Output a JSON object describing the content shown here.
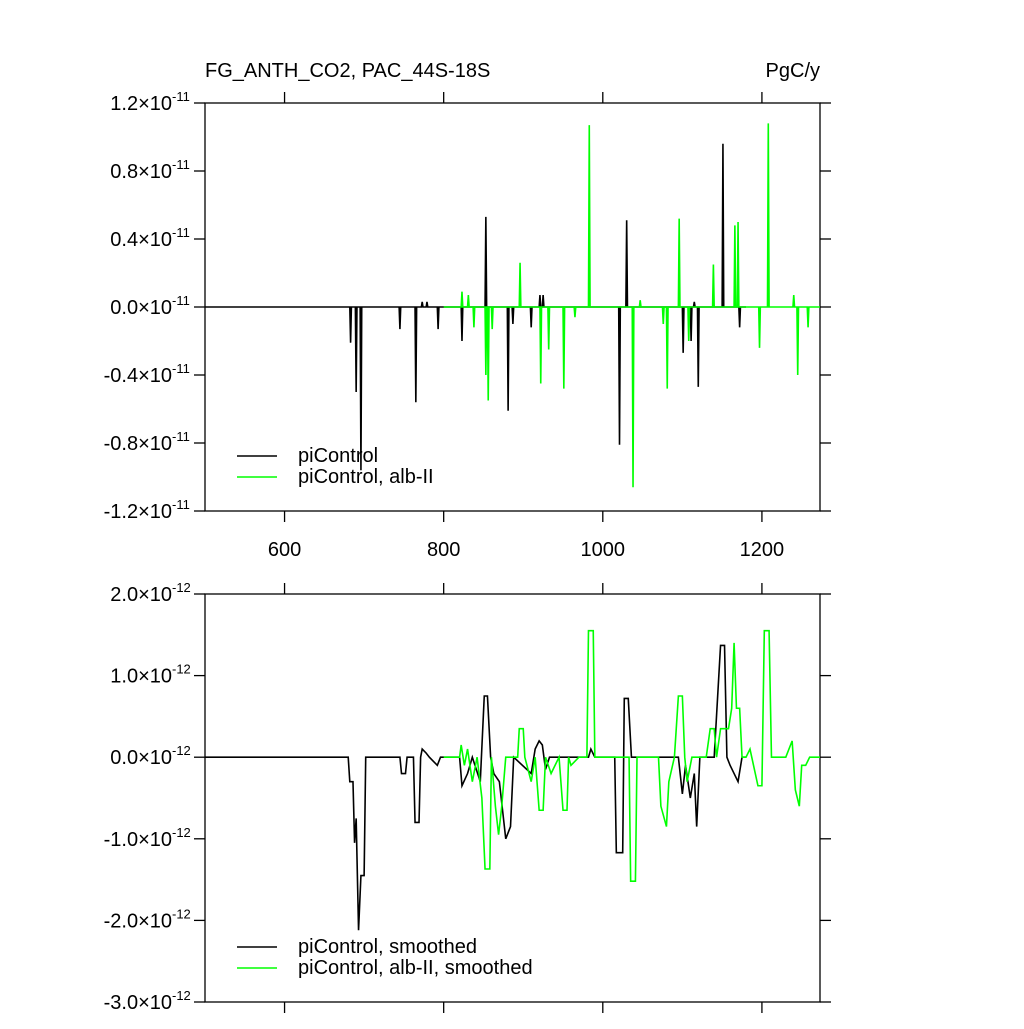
{
  "chart_data": [
    {
      "type": "line",
      "title": "FG_ANTH_CO2, PAC_44S-18S",
      "units": "PgC/y",
      "xlim": [
        500,
        1273
      ],
      "xticks": [
        600,
        800,
        1000,
        1200
      ],
      "ylim": [
        -1.2e-11,
        1.2e-11
      ],
      "yticks": [
        {
          "value": 1.2e-11,
          "label": "1.2×10",
          "exponent": "-11"
        },
        {
          "value": 8e-12,
          "label": "0.8×10",
          "exponent": "-11"
        },
        {
          "value": 4e-12,
          "label": "0.4×10",
          "exponent": "-11"
        },
        {
          "value": 0,
          "label": "0.0×10",
          "exponent": "-11"
        },
        {
          "value": -4e-12,
          "label": "-0.4×10",
          "exponent": "-11"
        },
        {
          "value": -8e-12,
          "label": "-0.8×10",
          "exponent": "-11"
        },
        {
          "value": -1.2e-11,
          "label": "-1.2×10",
          "exponent": "-11"
        }
      ],
      "legend": "lower left",
      "series": [
        {
          "name": "piControl",
          "color": "#000000",
          "x": [
            500,
            682,
            683,
            684,
            689,
            690,
            691,
            695,
            696,
            697,
            744,
            745,
            746,
            764,
            765,
            766,
            772,
            773,
            774,
            778,
            779,
            780,
            792,
            793,
            794,
            822,
            823,
            824,
            852,
            853,
            854,
            880,
            881,
            882,
            886,
            887,
            888,
            909,
            910,
            911,
            920,
            921,
            922,
            924,
            925,
            926,
            1020,
            1021,
            1022,
            1029,
            1030,
            1031,
            1100,
            1101,
            1102,
            1110,
            1111,
            1112,
            1114,
            1115,
            1116,
            1119,
            1120,
            1121,
            1150,
            1151,
            1152,
            1171,
            1172,
            1173,
            1180
          ],
          "values": [
            0,
            0,
            -2.1e-12,
            0,
            0,
            -5e-12,
            0,
            0,
            -9.6e-12,
            0,
            0,
            -1.3e-12,
            0,
            0,
            -5.6e-12,
            0,
            0,
            3e-13,
            0,
            0,
            3e-13,
            0,
            0,
            -1.3e-12,
            0,
            0,
            -2e-12,
            0,
            0,
            5.3e-12,
            0,
            0,
            -6.1e-12,
            0,
            0,
            -1e-12,
            0,
            0,
            -1.2e-12,
            0,
            0,
            7e-13,
            0,
            0,
            7e-13,
            0,
            0,
            -8.1e-12,
            0,
            0,
            5.1e-12,
            0,
            0,
            -2.7e-12,
            0,
            0,
            -2e-12,
            0,
            0,
            3e-13,
            0,
            0,
            -4.7e-12,
            0,
            0,
            9.6e-12,
            0,
            0,
            -1.2e-12,
            0,
            0
          ]
        },
        {
          "name": "piControl, alb-II",
          "color": "#00ff00",
          "x": [
            800,
            822,
            823,
            824,
            830,
            831,
            832,
            837,
            838,
            839,
            852,
            853,
            854,
            855,
            856,
            857,
            860,
            861,
            862,
            895,
            896,
            897,
            921,
            922,
            923,
            931,
            932,
            933,
            950,
            951,
            952,
            964,
            965,
            966,
            982,
            983,
            984,
            1037,
            1038,
            1039,
            1046,
            1047,
            1048,
            1075,
            1076,
            1077,
            1080,
            1081,
            1082,
            1095,
            1096,
            1097,
            1107,
            1108,
            1109,
            1138,
            1139,
            1140,
            1165,
            1166,
            1167,
            1169,
            1170,
            1171,
            1196,
            1197,
            1198,
            1207,
            1208,
            1209,
            1239,
            1240,
            1241,
            1244,
            1245,
            1246,
            1257,
            1258,
            1259,
            1273
          ],
          "values": [
            0,
            0,
            9e-13,
            0,
            0,
            7e-13,
            0,
            0,
            -1.2e-12,
            0,
            0,
            -4e-12,
            0,
            0,
            -5.5e-12,
            0,
            0,
            -1.3e-12,
            0,
            0,
            2.6e-12,
            0,
            0,
            -4.5e-12,
            0,
            0,
            -2.5e-12,
            0,
            0,
            -4.8e-12,
            0,
            0,
            -6e-13,
            0,
            0,
            1.07e-11,
            0,
            0,
            -1.06e-11,
            0,
            0,
            4e-13,
            0,
            0,
            -1e-12,
            0,
            0,
            -4.8e-12,
            0,
            0,
            5.2e-12,
            0,
            0,
            -2e-12,
            0,
            0,
            2.5e-12,
            0,
            0,
            4.8e-12,
            0,
            0,
            5e-12,
            0,
            0,
            -2.4e-12,
            0,
            0,
            1.08e-11,
            0,
            0,
            7e-13,
            0,
            0,
            -4e-12,
            0,
            0,
            -1.2e-12,
            0,
            0
          ]
        }
      ]
    },
    {
      "type": "line",
      "xlim": [
        500,
        1273
      ],
      "xticks": [
        600,
        800,
        1000,
        1200
      ],
      "xticklabels": false,
      "ylim": [
        -3e-12,
        2e-12
      ],
      "yticks": [
        {
          "value": 2e-12,
          "label": "2.0×10",
          "exponent": "-12"
        },
        {
          "value": 1e-12,
          "label": "1.0×10",
          "exponent": "-12"
        },
        {
          "value": 0,
          "label": "0.0×10",
          "exponent": "-12"
        },
        {
          "value": -1e-12,
          "label": "-1.0×10",
          "exponent": "-12"
        },
        {
          "value": -2e-12,
          "label": "-2.0×10",
          "exponent": "-12"
        },
        {
          "value": -3e-12,
          "label": "-3.0×10",
          "exponent": "-12"
        }
      ],
      "legend": "lower left",
      "series": [
        {
          "name": "piControl, smoothed",
          "color": "#000000",
          "x": [
            500,
            680,
            682,
            686,
            688,
            690,
            693,
            696,
            700,
            702,
            745,
            747,
            752,
            754,
            762,
            764,
            769,
            771,
            773,
            778,
            782,
            792,
            796,
            820,
            823,
            830,
            836,
            846,
            851,
            855,
            859,
            863,
            870,
            878,
            884,
            888,
            910,
            915,
            920,
            924,
            928,
            933,
            982,
            985,
            990,
            1015,
            1017,
            1025,
            1027,
            1032,
            1036,
            1095,
            1100,
            1104,
            1110,
            1115,
            1118,
            1122,
            1140,
            1148,
            1153,
            1156,
            1160,
            1170,
            1175,
            1180
          ],
          "values": [
            0,
            0,
            -3e-13,
            -3e-13,
            -1.05e-12,
            -7.5e-13,
            -2.12e-12,
            -1.45e-12,
            -1.45e-12,
            0,
            0,
            -2e-13,
            -2e-13,
            0,
            0,
            -8e-13,
            -8e-13,
            0,
            1e-13,
            5e-14,
            0,
            -1e-13,
            0,
            0,
            -3.5e-13,
            -2e-13,
            0,
            -3e-13,
            7.5e-13,
            7.5e-13,
            0,
            -2e-13,
            -3e-13,
            -1e-12,
            -8.5e-13,
            0,
            -2e-13,
            1e-13,
            2e-13,
            1.5e-13,
            -1.5e-13,
            0,
            0,
            1e-13,
            0,
            0,
            -1.17e-12,
            -1.17e-12,
            7.2e-13,
            7.2e-13,
            0,
            0,
            -4.5e-13,
            -1e-13,
            -5e-13,
            -2e-13,
            -8.5e-13,
            0,
            0,
            1.37e-12,
            1.37e-12,
            0,
            -1e-13,
            -3e-13,
            0,
            0
          ]
        },
        {
          "name": "piControl, alb-II, smoothed",
          "color": "#00ff00",
          "x": [
            800,
            820,
            822,
            826,
            830,
            836,
            842,
            848,
            852,
            858,
            860,
            865,
            869,
            873,
            878,
            893,
            895,
            900,
            902,
            910,
            915,
            920,
            925,
            928,
            935,
            945,
            950,
            955,
            957,
            960,
            970,
            980,
            982,
            988,
            990,
            1033,
            1035,
            1041,
            1043,
            1070,
            1073,
            1080,
            1083,
            1090,
            1095,
            1100,
            1103,
            1106,
            1112,
            1130,
            1135,
            1140,
            1143,
            1148,
            1158,
            1162,
            1165,
            1168,
            1172,
            1175,
            1180,
            1185,
            1195,
            1200,
            1203,
            1209,
            1212,
            1230,
            1238,
            1242,
            1247,
            1250,
            1255,
            1260,
            1273
          ],
          "values": [
            0,
            0,
            1.5e-13,
            -1e-13,
            1e-13,
            -3e-13,
            0,
            -5e-13,
            -1.37e-12,
            -1.37e-12,
            0,
            -6e-13,
            -9.5e-13,
            -6e-13,
            0,
            0,
            3.5e-13,
            3.5e-13,
            0,
            -3e-13,
            0,
            -6.5e-13,
            -6.5e-13,
            0,
            -2e-13,
            0,
            -6.5e-13,
            -6.5e-13,
            0,
            -1e-13,
            0,
            0,
            1.55e-12,
            1.55e-12,
            0,
            0,
            -1.52e-12,
            -1.52e-12,
            0,
            0,
            -6e-13,
            -8.5e-13,
            -3e-13,
            0,
            7.5e-13,
            7.5e-13,
            0,
            -3e-13,
            0,
            0,
            3.5e-13,
            3.5e-13,
            0,
            3.5e-13,
            3.5e-13,
            6e-13,
            1.4e-12,
            6e-13,
            6e-13,
            0,
            0,
            1e-13,
            -3.5e-13,
            -3.5e-13,
            1.55e-12,
            1.55e-12,
            0,
            0,
            2e-13,
            -4e-13,
            -6e-13,
            -1e-13,
            -1e-13,
            0,
            0
          ]
        }
      ]
    }
  ]
}
